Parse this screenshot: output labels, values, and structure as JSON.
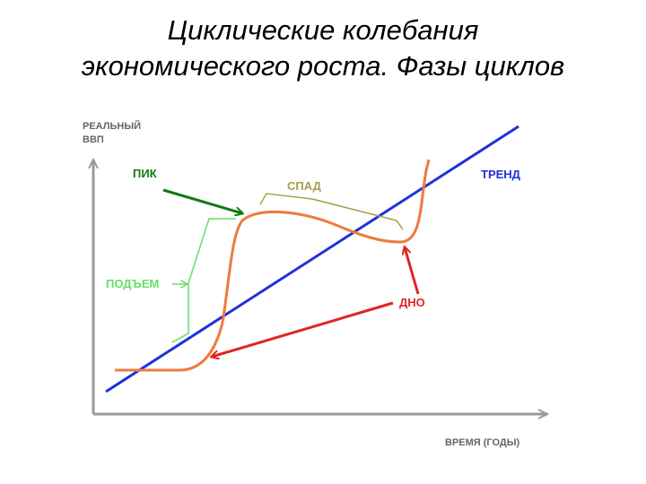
{
  "title": {
    "line1": "Циклические колебания",
    "line2": "экономического роста. Фазы циклов"
  },
  "diagram": {
    "y_axis_label_line1": "РЕАЛЬНЫЙ",
    "y_axis_label_line2": "ВВП",
    "x_axis_label": "ВРЕМЯ (ГОДЫ)",
    "labels": {
      "peak": "ПИК",
      "recession": "СПАД",
      "trend": "ТРЕНД",
      "expansion": "ПОДЪЕМ",
      "trough": "ДНО"
    },
    "colors": {
      "axis": "#9a9a9a",
      "trend": "#2130d9",
      "cycle": "#f07a3c",
      "peak": "#127a12",
      "recession": "#a5a04a",
      "expansion": "#63e063",
      "trough": "#e02424"
    }
  }
}
